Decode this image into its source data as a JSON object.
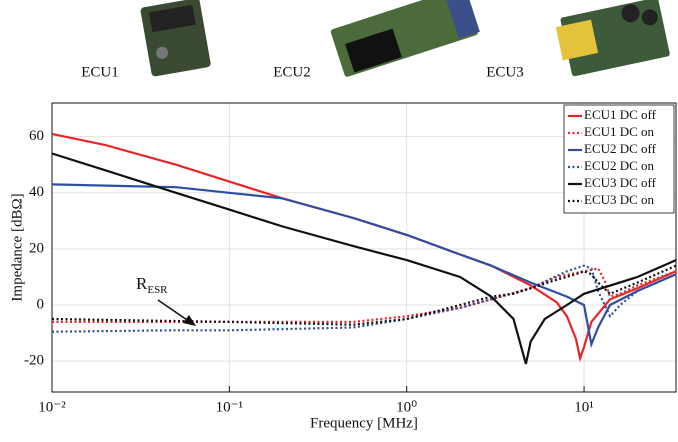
{
  "header": {
    "labels": [
      "ECU1",
      "ECU2",
      "ECU3"
    ]
  },
  "chart_data": {
    "type": "line",
    "xlabel": "Frequency [MHz]",
    "ylabel": "Impedance [dBΩ]",
    "annotation": {
      "text": "R",
      "subscript": "ESR"
    },
    "xscale": "log",
    "xlim": [
      0.01,
      33
    ],
    "ylim": [
      -31,
      72
    ],
    "xticks": [
      {
        "value": 0.01,
        "label": "10⁻²"
      },
      {
        "value": 0.1,
        "label": "10⁻¹"
      },
      {
        "value": 1,
        "label": "10⁰"
      },
      {
        "value": 10,
        "label": "10¹"
      }
    ],
    "yticks": [
      -20,
      0,
      20,
      40,
      60
    ],
    "grid": true,
    "legend": "upper right",
    "series": [
      {
        "name": "ECU1 DC off",
        "color": "#e8262a",
        "dash": "solid",
        "x": [
          0.01,
          0.02,
          0.05,
          0.1,
          0.2,
          0.5,
          1,
          2,
          3,
          5,
          7,
          8,
          9,
          9.5,
          10,
          11,
          14,
          20,
          33
        ],
        "values": [
          61,
          57,
          50,
          44,
          38,
          31,
          25,
          18,
          14,
          7,
          1,
          -4,
          -12,
          -19,
          -15,
          -6,
          2,
          6,
          12
        ]
      },
      {
        "name": "ECU1 DC on",
        "color": "#e8262a",
        "dash": "dotted",
        "x": [
          0.01,
          0.05,
          0.1,
          0.5,
          1,
          2,
          3,
          5,
          7,
          10,
          12,
          13,
          14,
          16,
          20,
          33
        ],
        "values": [
          -6,
          -6,
          -6,
          -6,
          -4,
          -1,
          2,
          6,
          10,
          12,
          13,
          9,
          3,
          4,
          7,
          12
        ]
      },
      {
        "name": "ECU2 DC off",
        "color": "#2e4fa0",
        "dash": "solid",
        "x": [
          0.01,
          0.05,
          0.1,
          0.2,
          0.5,
          1,
          2,
          3,
          5,
          8,
          10,
          11,
          12,
          14,
          20,
          33
        ],
        "values": [
          43,
          42,
          40,
          38,
          31,
          25,
          18,
          14,
          8,
          3,
          0,
          -14,
          -8,
          0,
          5,
          11
        ]
      },
      {
        "name": "ECU2 DC on",
        "color": "#2e4fa0",
        "dash": "dotted",
        "x": [
          0.01,
          0.05,
          0.1,
          0.5,
          1,
          2,
          5,
          8,
          10,
          11,
          12,
          14,
          16,
          20,
          33
        ],
        "values": [
          -9.5,
          -9,
          -9,
          -8,
          -5,
          -1,
          6,
          12,
          14,
          13,
          5,
          -4,
          0,
          5,
          11
        ]
      },
      {
        "name": "ECU3 DC off",
        "color": "#111111",
        "dash": "solid",
        "x": [
          0.01,
          0.02,
          0.05,
          0.1,
          0.2,
          0.5,
          1,
          2,
          3,
          4,
          4.7,
          5,
          6,
          8,
          10,
          20,
          33
        ],
        "values": [
          54,
          48,
          40,
          34,
          28,
          21,
          16,
          10,
          3,
          -5,
          -21,
          -13,
          -5,
          0,
          4,
          10,
          16
        ]
      },
      {
        "name": "ECU3 DC on",
        "color": "#111111",
        "dash": "dotted",
        "x": [
          0.01,
          0.1,
          0.5,
          1,
          2,
          3,
          4,
          5,
          7,
          9,
          10,
          11,
          12,
          14,
          20,
          33
        ],
        "values": [
          -5,
          -6,
          -7,
          -5,
          0,
          3,
          4,
          6,
          9,
          11,
          12,
          11,
          8,
          4,
          8,
          14
        ]
      }
    ]
  }
}
